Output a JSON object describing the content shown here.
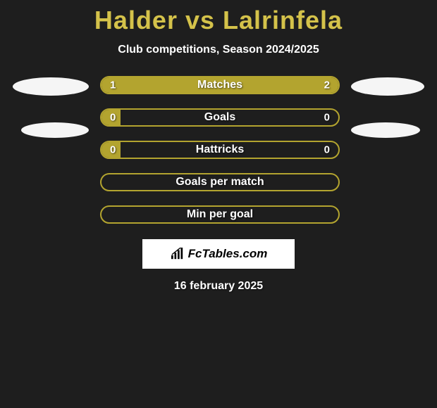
{
  "title": "Halder vs Lalrinfela",
  "subtitle": "Club competitions, Season 2024/2025",
  "date": "16 february 2025",
  "logo_text": "FcTables.com",
  "colors": {
    "background": "#1e1e1e",
    "title": "#d4c24a",
    "bar_border": "#b3a42f",
    "left_fill": "#b3a42f",
    "right_fill": "#b3a42f",
    "avatar": "#f5f5f5",
    "text": "#ffffff"
  },
  "bars": [
    {
      "label": "Matches",
      "left_value": "1",
      "right_value": "2",
      "left_pct": 33.3,
      "right_pct": 66.7,
      "show_values": true
    },
    {
      "label": "Goals",
      "left_value": "0",
      "right_value": "0",
      "left_pct": 8,
      "right_pct": 0,
      "show_values": true
    },
    {
      "label": "Hattricks",
      "left_value": "0",
      "right_value": "0",
      "left_pct": 8,
      "right_pct": 0,
      "show_values": true
    },
    {
      "label": "Goals per match",
      "left_value": "",
      "right_value": "",
      "left_pct": 0,
      "right_pct": 0,
      "show_values": false
    },
    {
      "label": "Min per goal",
      "left_value": "",
      "right_value": "",
      "left_pct": 0,
      "right_pct": 0,
      "show_values": false
    }
  ]
}
